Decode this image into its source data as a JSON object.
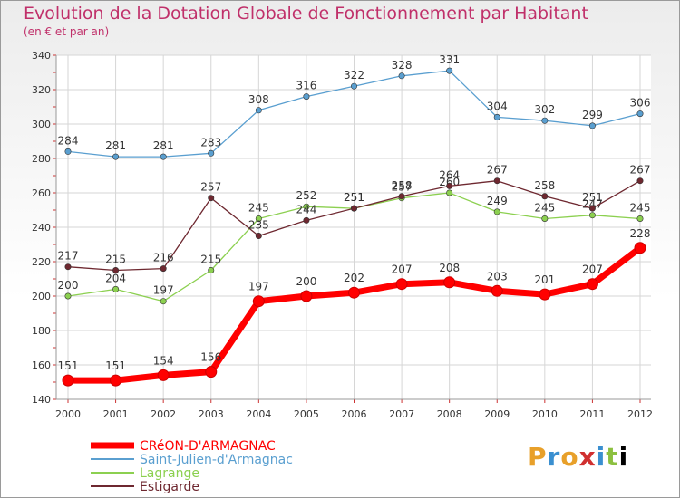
{
  "chart_data": {
    "type": "line",
    "title": "Evolution de la Dotation Globale de Fonctionnement par Habitant",
    "subtitle": "(en € et par an)",
    "x": [
      "2000",
      "2001",
      "2002",
      "2003",
      "2004",
      "2005",
      "2006",
      "2007",
      "2008",
      "2009",
      "2010",
      "2011",
      "2012"
    ],
    "ylim": [
      140,
      340
    ],
    "yticks": [
      140,
      160,
      180,
      200,
      220,
      240,
      260,
      280,
      300,
      320,
      340
    ],
    "grid": true,
    "legend_position": "bottom-left",
    "series": [
      {
        "name": "CRéON-D'ARMAGNAC",
        "color": "#ff0000",
        "values": [
          151,
          151,
          154,
          156,
          197,
          200,
          202,
          207,
          208,
          203,
          201,
          207,
          228
        ]
      },
      {
        "name": "Saint-Julien-d'Armagnac",
        "color": "#5a9fd0",
        "values": [
          284,
          281,
          281,
          283,
          308,
          316,
          322,
          328,
          331,
          304,
          302,
          299,
          306
        ]
      },
      {
        "name": "Lagrange",
        "color": "#8cd050",
        "values": [
          200,
          204,
          197,
          215,
          245,
          252,
          251,
          257,
          260,
          249,
          245,
          247,
          245
        ]
      },
      {
        "name": "Estigarde",
        "color": "#6e2830",
        "values": [
          217,
          215,
          216,
          257,
          235,
          244,
          251,
          258,
          264,
          267,
          258,
          251,
          267
        ]
      }
    ]
  },
  "brand": [
    "P",
    "r",
    "o",
    "x",
    "i",
    "t",
    "i"
  ]
}
